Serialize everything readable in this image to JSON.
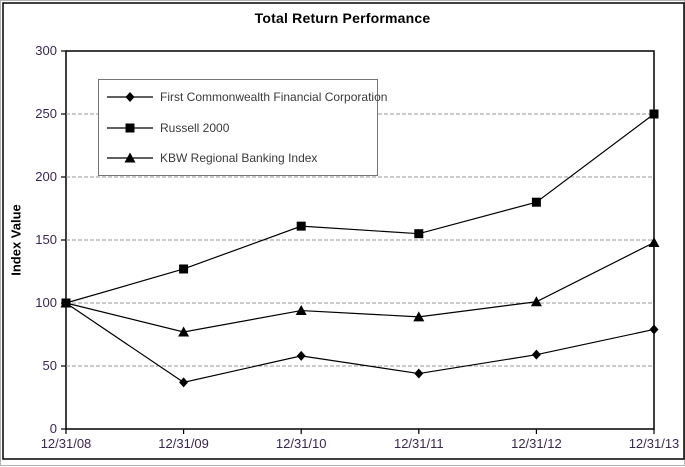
{
  "chart_data": {
    "type": "line",
    "title": "Total Return Performance",
    "ylabel": "Index Value",
    "categories": [
      "12/31/08",
      "12/31/09",
      "12/31/10",
      "12/31/11",
      "12/31/12",
      "12/31/13"
    ],
    "series": [
      {
        "name": "First Commonwealth Financial Corporation",
        "marker": "diamond",
        "values": [
          100,
          37,
          58,
          44,
          59,
          79
        ]
      },
      {
        "name": "Russell 2000",
        "marker": "square",
        "values": [
          100,
          127,
          161,
          155,
          180,
          250
        ]
      },
      {
        "name": "KBW Regional Banking Index",
        "marker": "triangle",
        "values": [
          100,
          77,
          94,
          89,
          101,
          148
        ]
      }
    ],
    "ylim": [
      0,
      300
    ],
    "yticks": [
      0,
      50,
      100,
      150,
      200,
      250,
      300
    ],
    "grid": "horizontal dashed gridlines every 50 units",
    "legend_position": "upper-left inside plot area",
    "colors": {
      "series": "#000000",
      "gridline": "#999999",
      "tick_label": "#3a2750",
      "legend_text": "#3a3a3a",
      "title": "#000000",
      "plot_border": "#000000",
      "frame_border": "#000000",
      "outer_border": "#b3b3b3"
    }
  }
}
